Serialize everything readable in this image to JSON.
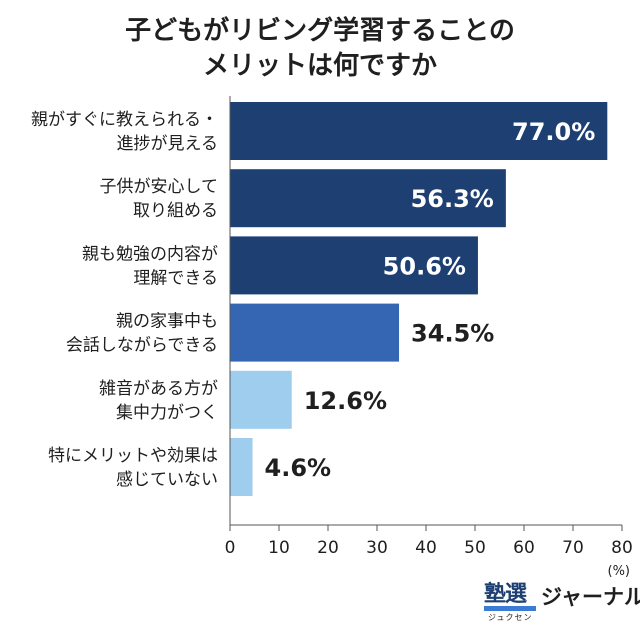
{
  "title": {
    "line1": "子どもがリビング学習することの",
    "line2": "メリットは何ですか"
  },
  "chart_data": {
    "type": "bar",
    "orientation": "horizontal",
    "categories": [
      [
        "親がすぐに教えられる・",
        "進捗が見える"
      ],
      [
        "子供が安心して",
        "取り組める"
      ],
      [
        "親も勉強の内容が",
        "理解できる"
      ],
      [
        "親の家事中も",
        "会話しながらできる"
      ],
      [
        "雑音がある方が",
        "集中力がつく"
      ],
      [
        "特にメリットや効果は",
        "感じていない"
      ]
    ],
    "values": [
      77.0,
      56.3,
      50.6,
      34.5,
      12.6,
      4.6
    ],
    "value_labels": [
      "77.0%",
      "56.3%",
      "50.6%",
      "34.5%",
      "12.6%",
      "4.6%"
    ],
    "bar_colors": [
      "#1d3f72",
      "#1d3f72",
      "#1d3f72",
      "#3466b3",
      "#9fcdee",
      "#9fcdee"
    ],
    "label_inside": [
      true,
      true,
      true,
      false,
      false,
      false
    ],
    "xlim": [
      0,
      80
    ],
    "xticks": [
      "0",
      "10",
      "20",
      "30",
      "40",
      "50",
      "60",
      "70",
      "80"
    ],
    "xunit": "(%)",
    "grid": false
  },
  "logo": {
    "kanji": "塾選",
    "small_kana": "ジュクセン",
    "word": "ジャーナル"
  }
}
